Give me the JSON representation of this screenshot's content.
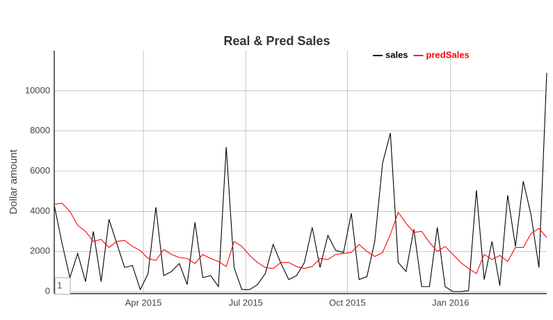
{
  "chart_data": {
    "type": "line",
    "title": "Real & Pred Sales",
    "y_label": "Dollar amount",
    "annotation": "1",
    "x": [
      0,
      1,
      2,
      3,
      4,
      5,
      6,
      7,
      8,
      9,
      10,
      11,
      12,
      13,
      14,
      15,
      16,
      17,
      18,
      19,
      20,
      21,
      22,
      23,
      24,
      25,
      26,
      27,
      28,
      29,
      30,
      31,
      32,
      33,
      34,
      35,
      36,
      37,
      38,
      39,
      40,
      41,
      42,
      43,
      44,
      45,
      46,
      47,
      48,
      49,
      50,
      51,
      52,
      53,
      54,
      55,
      56,
      57,
      58,
      59,
      60,
      61,
      62,
      63
    ],
    "xlim": [
      0,
      63
    ],
    "xticks": [
      {
        "value": 11.4,
        "label": "Apr 2015"
      },
      {
        "value": 24.5,
        "label": "Jul 2015"
      },
      {
        "value": 37.5,
        "label": "Oct 2015"
      },
      {
        "value": 50.7,
        "label": "Jan 2016"
      }
    ],
    "ylim": [
      -100,
      12000
    ],
    "yticks": [
      0,
      2000,
      4000,
      6000,
      8000,
      10000
    ],
    "grid": true,
    "legend": "top-right",
    "series": [
      {
        "name": "sales",
        "color": "#000000",
        "values": [
          4300,
          2400,
          700,
          1900,
          500,
          3000,
          500,
          3600,
          2400,
          1200,
          1300,
          100,
          900,
          4200,
          800,
          1000,
          1400,
          350,
          3450,
          700,
          800,
          250,
          7200,
          1200,
          100,
          100,
          350,
          900,
          2350,
          1400,
          600,
          800,
          1450,
          3200,
          1200,
          2800,
          2050,
          1950,
          3900,
          600,
          750,
          2500,
          6400,
          7900,
          1450,
          1000,
          3100,
          250,
          250,
          3200,
          250,
          0,
          0,
          50,
          5050,
          600,
          2500,
          300,
          4800,
          2250,
          5500,
          3800,
          1200,
          10900
        ]
      },
      {
        "name": "predSales",
        "color": "#ff0000",
        "values": [
          4350,
          4400,
          4000,
          3300,
          3000,
          2500,
          2600,
          2200,
          2500,
          2550,
          2250,
          2050,
          1650,
          1550,
          2100,
          1850,
          1700,
          1650,
          1400,
          1850,
          1650,
          1500,
          1250,
          2500,
          2250,
          1800,
          1450,
          1200,
          1150,
          1450,
          1450,
          1250,
          1150,
          1250,
          1650,
          1600,
          1850,
          1900,
          1950,
          2350,
          2000,
          1750,
          1950,
          2850,
          3950,
          3400,
          2950,
          3000,
          2450,
          2000,
          2250,
          1850,
          1450,
          1150,
          900,
          1850,
          1600,
          1800,
          1500,
          2200,
          2200,
          2900,
          3150,
          2700
        ]
      }
    ]
  }
}
